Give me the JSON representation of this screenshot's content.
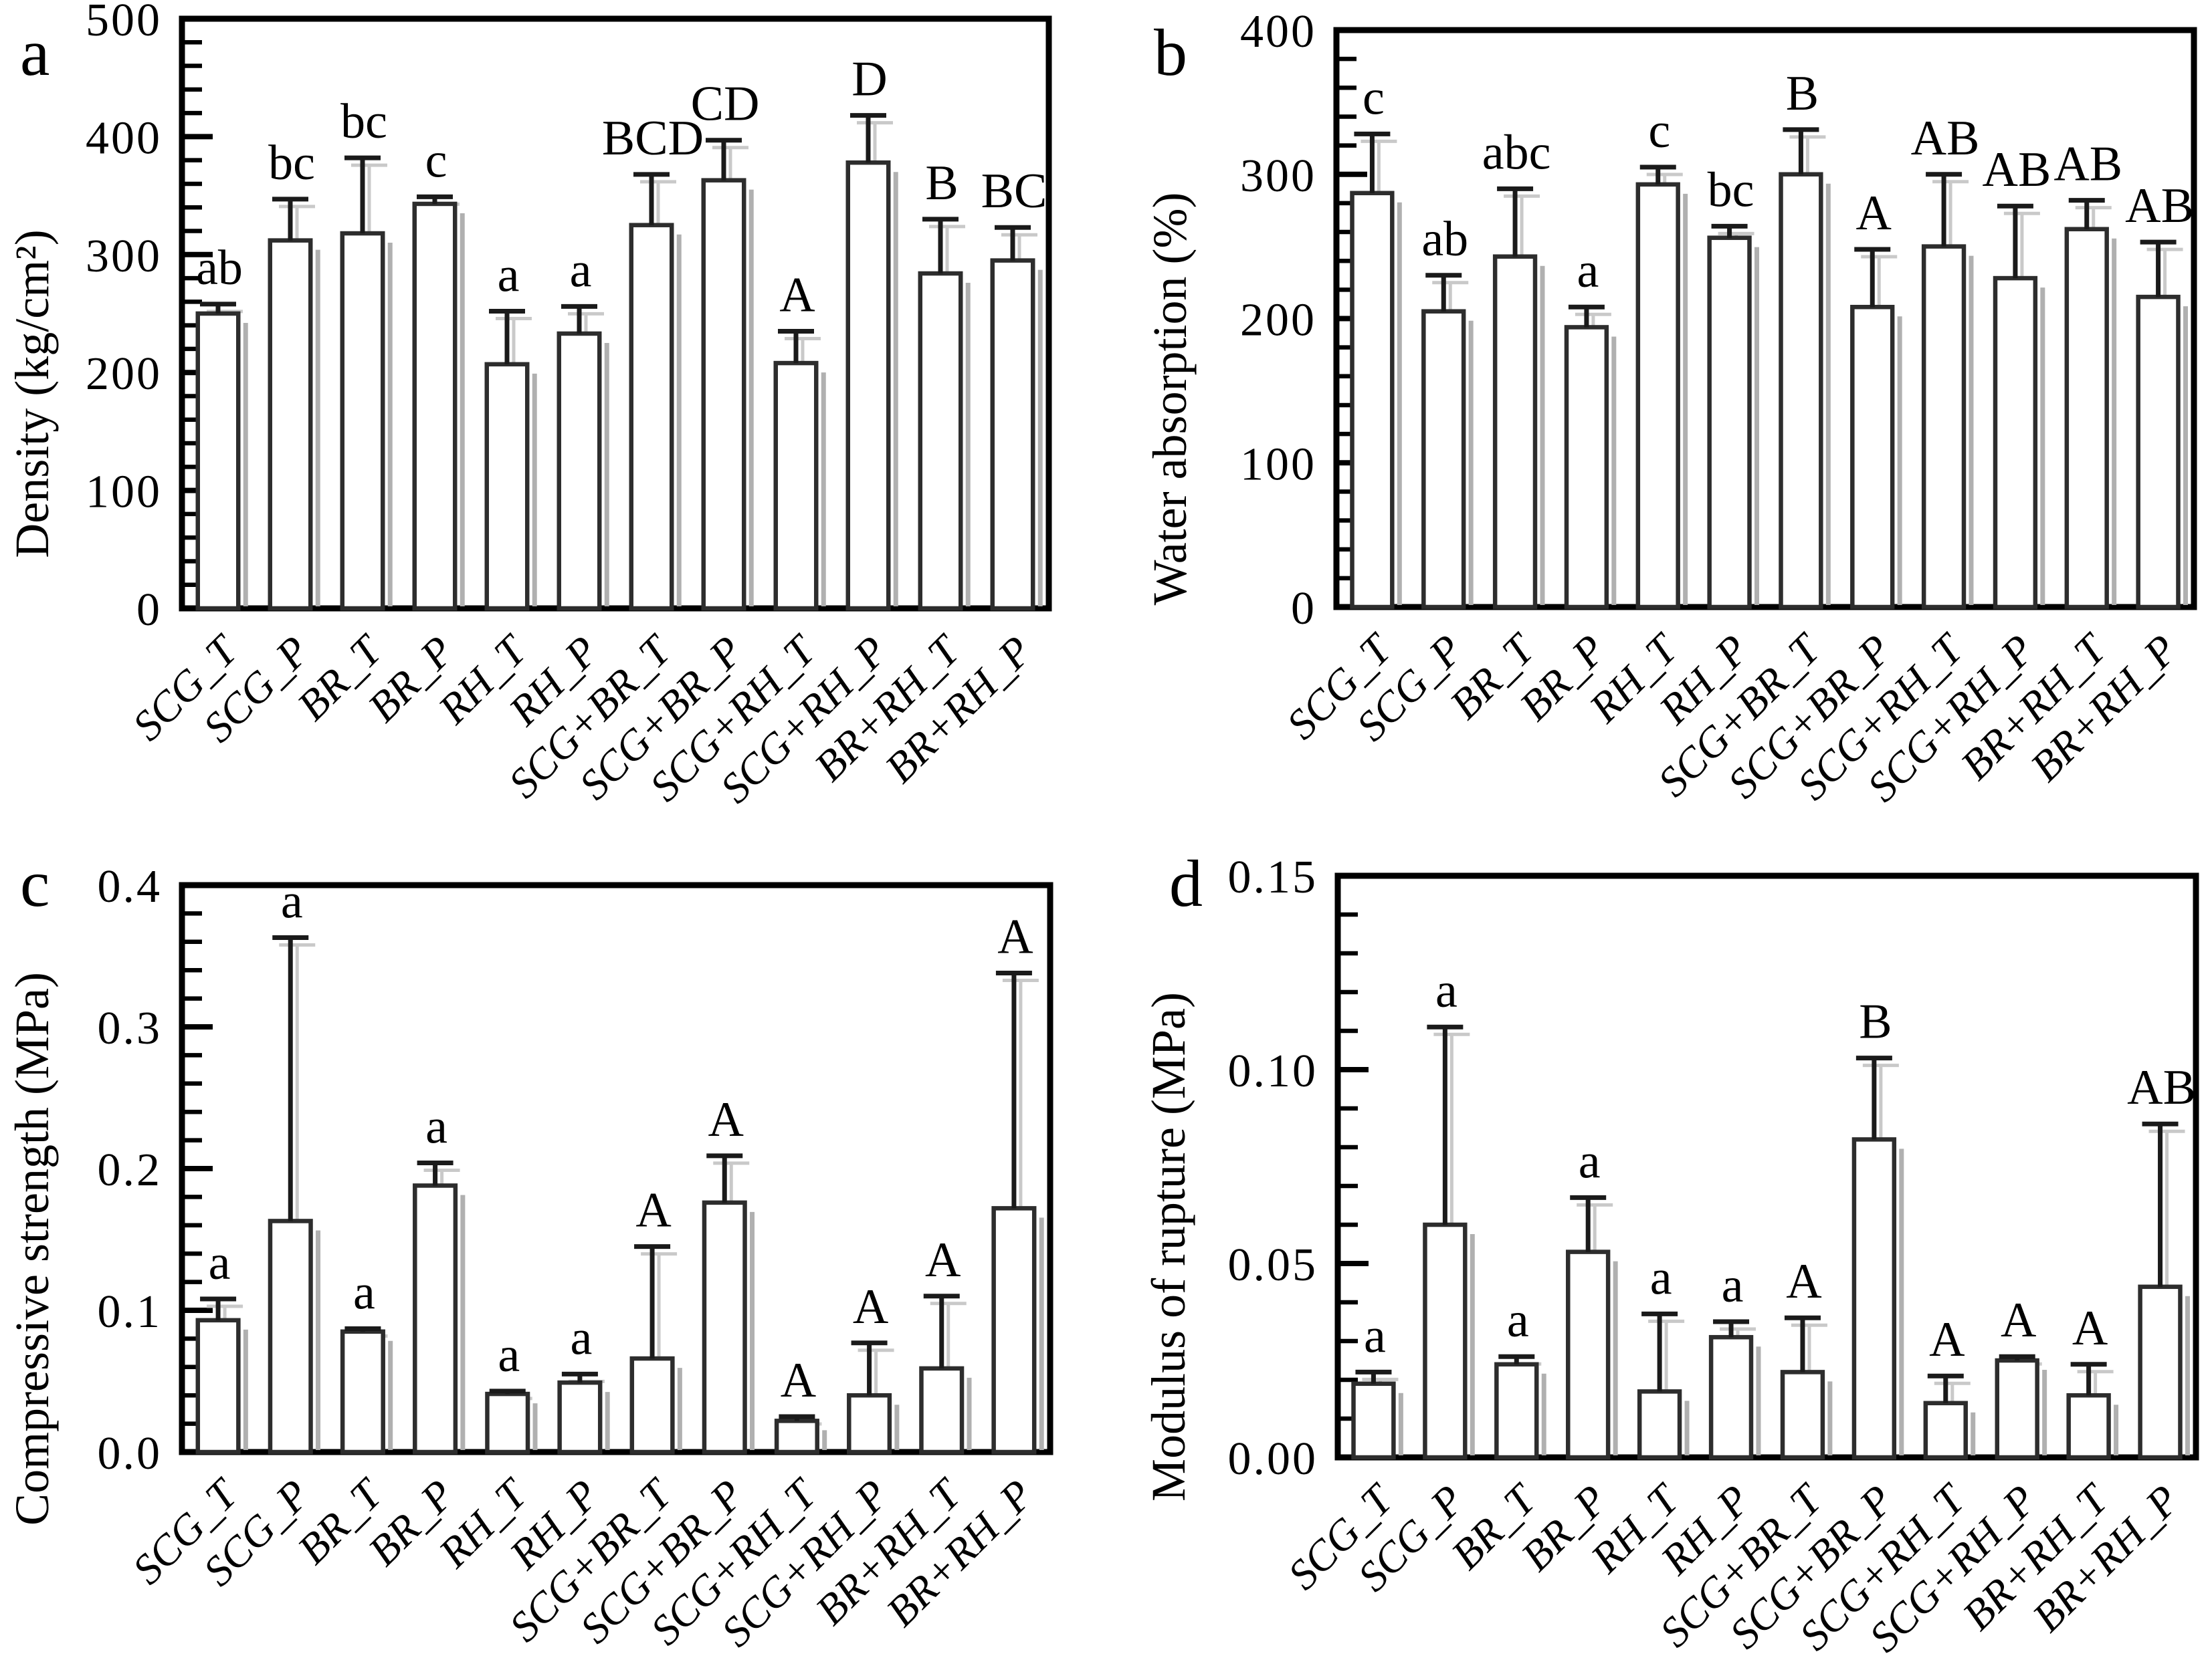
{
  "figure": {
    "background": "#ffffff",
    "bar_fill": "#ffffff",
    "bar_stroke": "#2d2d2d",
    "axis_color": "#000000",
    "error_color": "#1a1a1a",
    "shadow_color": "#b0b0b0",
    "echo_color": "#c9c9c9",
    "grid": "off",
    "legend": "none"
  },
  "chart_data": [
    {
      "panel": "a",
      "type": "bar",
      "title": "",
      "xlabel": "",
      "ylabel": "Density (kg/cm²)",
      "ylim": [
        0,
        500
      ],
      "yticks": [
        0,
        100,
        200,
        300,
        400,
        500
      ],
      "ytick_labels": [
        "0",
        "100",
        "200",
        "300",
        "400",
        "500"
      ],
      "minor_tick_step": 20,
      "categories": [
        "SCG_T",
        "SCG_P",
        "BR_T",
        "BR_P",
        "RH_T",
        "RH_P",
        "SCG+BR_T",
        "SCG+BR_P",
        "SCG+RH_T",
        "SCG+RH_P",
        "BR+RH_T",
        "BR+RH_P"
      ],
      "values": [
        250,
        312,
        318,
        343,
        207,
        233,
        325,
        363,
        208,
        378,
        284,
        295
      ],
      "errors_upper": [
        8,
        35,
        64,
        6,
        45,
        23,
        43,
        34,
        27,
        40,
        46,
        28
      ],
      "sig_letters": [
        "ab",
        "bc",
        "bc",
        "c",
        "a",
        "a",
        "BCD",
        "CD",
        "A",
        "D",
        "B",
        "BC"
      ]
    },
    {
      "panel": "b",
      "type": "bar",
      "title": "",
      "xlabel": "",
      "ylabel": "Water absorption (%)",
      "ylim": [
        0,
        400
      ],
      "yticks": [
        0,
        100,
        200,
        300,
        400
      ],
      "ytick_labels": [
        "0",
        "100",
        "200",
        "300",
        "400"
      ],
      "minor_tick_step": 20,
      "categories": [
        "SCG_T",
        "SCG_P",
        "BR_T",
        "BR_P",
        "RH_T",
        "RH_P",
        "SCG+BR_T",
        "SCG+BR_P",
        "SCG+RH_T",
        "SCG+RH_P",
        "BR+RH_T",
        "BR+RH_P"
      ],
      "values": [
        287,
        205,
        243,
        194,
        293,
        256,
        300,
        208,
        250,
        228,
        262,
        215
      ],
      "errors_upper": [
        41,
        25,
        47,
        14,
        12,
        8,
        31,
        40,
        50,
        50,
        20,
        38
      ],
      "sig_letters": [
        "c",
        "ab",
        "abc",
        "a",
        "c",
        "bc",
        "B",
        "A",
        "AB",
        "AB",
        "AB",
        "AB"
      ]
    },
    {
      "panel": "c",
      "type": "bar",
      "title": "",
      "xlabel": "",
      "ylabel": "Compressive strength (MPa)",
      "ylim": [
        0,
        0.4
      ],
      "yticks": [
        0,
        0.1,
        0.2,
        0.3,
        0.4
      ],
      "ytick_labels": [
        "0.0",
        "0.1",
        "0.2",
        "0.3",
        "0.4"
      ],
      "minor_tick_step": 0.02,
      "categories": [
        "SCG_T",
        "SCG_P",
        "BR_T",
        "BR_P",
        "RH_T",
        "RH_P",
        "SCG+BR_T",
        "SCG+BR_P",
        "SCG+RH_T",
        "SCG+RH_P",
        "BR+RH_T",
        "BR+RH_P"
      ],
      "values": [
        0.093,
        0.163,
        0.085,
        0.188,
        0.041,
        0.049,
        0.066,
        0.176,
        0.022,
        0.04,
        0.059,
        0.172
      ],
      "errors_upper": [
        0.015,
        0.2,
        0.002,
        0.016,
        0.002,
        0.006,
        0.079,
        0.033,
        0.003,
        0.037,
        0.051,
        0.166
      ],
      "sig_letters": [
        "a",
        "a",
        "a",
        "a",
        "a",
        "a",
        "A",
        "A",
        "A",
        "A",
        "A",
        "A"
      ]
    },
    {
      "panel": "d",
      "type": "bar",
      "title": "",
      "xlabel": "",
      "ylabel": "Modulus of rupture (MPa)",
      "ylim": [
        0,
        0.15
      ],
      "yticks": [
        0,
        0.05,
        0.1,
        0.15
      ],
      "ytick_labels": [
        "0.00",
        "0.05",
        "0.10",
        "0.15"
      ],
      "minor_tick_step": 0.01,
      "categories": [
        "SCG_T",
        "SCG_P",
        "BR_T",
        "BR_P",
        "RH_T",
        "RH_P",
        "SCG+BR_T",
        "SCG+BR_P",
        "SCG+RH_T",
        "SCG+RH_P",
        "BR+RH_T",
        "BR+RH_P"
      ],
      "values": [
        0.019,
        0.06,
        0.024,
        0.053,
        0.017,
        0.031,
        0.022,
        0.082,
        0.014,
        0.025,
        0.016,
        0.044
      ],
      "errors_upper": [
        0.003,
        0.051,
        0.002,
        0.014,
        0.02,
        0.004,
        0.014,
        0.021,
        0.007,
        0.001,
        0.008,
        0.042
      ],
      "sig_letters": [
        "a",
        "a",
        "a",
        "a",
        "a",
        "a",
        "A",
        "B",
        "A",
        "A",
        "A",
        "AB"
      ]
    }
  ]
}
